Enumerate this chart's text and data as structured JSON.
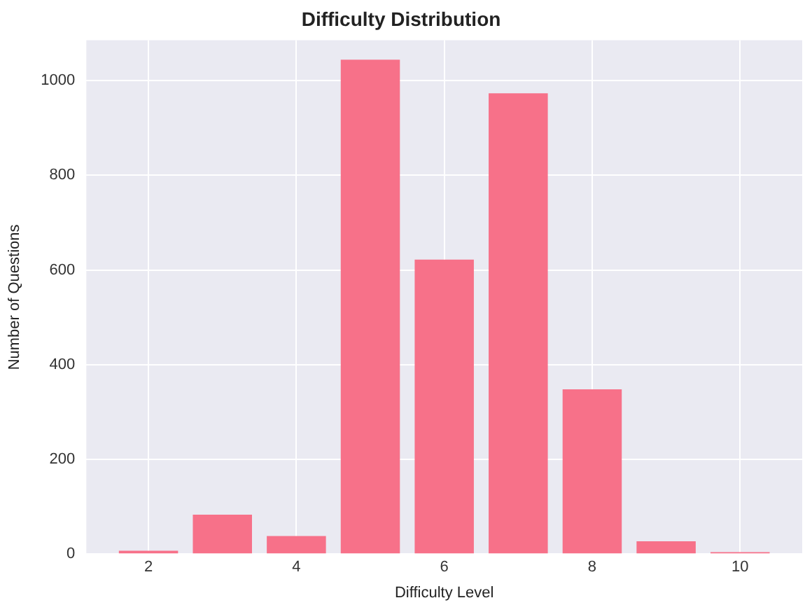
{
  "chart_data": {
    "type": "bar",
    "title": "Difficulty Distribution",
    "xlabel": "Difficulty Level",
    "ylabel": "Number of Questions",
    "x": [
      2,
      3,
      4,
      5,
      6,
      7,
      8,
      9,
      10
    ],
    "values": [
      7,
      83,
      38,
      1044,
      622,
      973,
      348,
      27,
      4
    ],
    "color": "#f77189",
    "xlim": [
      1.16,
      10.84
    ],
    "xticks": [
      2,
      4,
      6,
      8,
      10
    ],
    "ylim": [
      0,
      1085
    ],
    "yticks": [
      0,
      200,
      400,
      600,
      800,
      1000
    ],
    "grid": true,
    "legend": false
  }
}
